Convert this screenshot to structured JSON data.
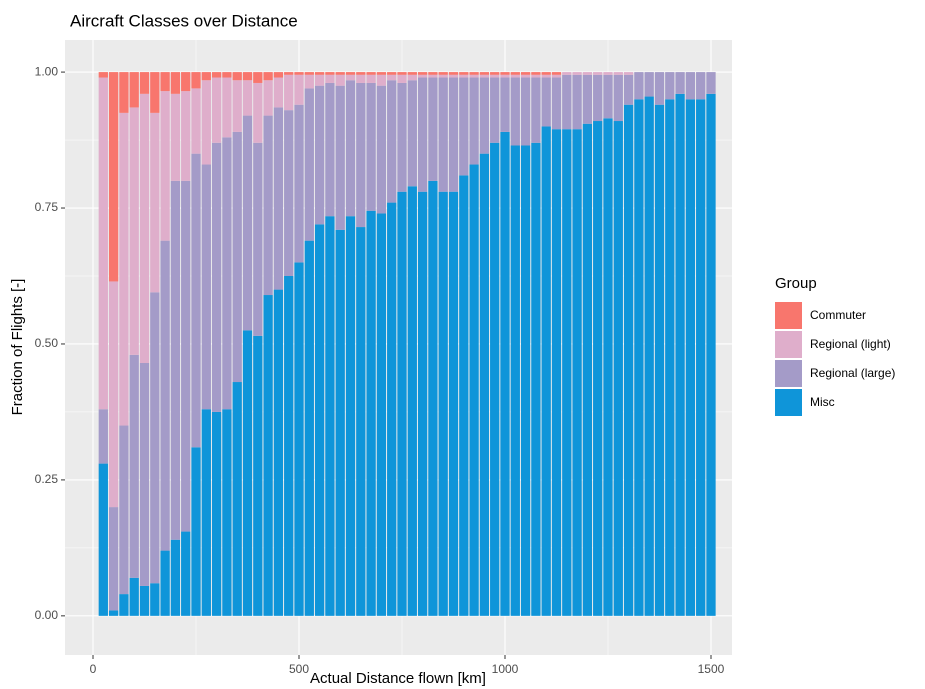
{
  "chart_data": {
    "type": "histogram",
    "title": "Aircraft Classes over Distance",
    "x_label": "Actual Distance flown [km]",
    "y_label": "Fraction of Flights [-]",
    "legend_title": "Group",
    "bins": [
      12.5,
      37.5,
      62.5,
      87.5,
      112.5,
      137.5,
      162.5,
      187.5,
      212.5,
      237.5,
      262.5,
      287.5,
      312.5,
      337.5,
      362.5,
      387.5,
      412.5,
      437.5,
      462.5,
      487.5,
      512.5,
      537.5,
      562.5,
      587.5,
      612.5,
      637.5,
      662.5,
      687.5,
      712.5,
      737.5,
      762.5,
      787.5,
      812.5,
      837.5,
      862.5,
      887.5,
      912.5,
      937.5,
      962.5,
      987.5,
      1012.5,
      1037.5,
      1062.5,
      1087.5,
      1112.5,
      1137.5,
      1162.5,
      1187.5,
      1212.5,
      1237.5,
      1262.5,
      1287.5,
      1312.5,
      1337.5,
      1362.5,
      1387.5,
      1412.5,
      1437.5,
      1462.5,
      1487.5,
      1512.5
    ],
    "series": [
      {
        "name": "Misc",
        "color": "#0f95d9",
        "values": [
          0.28,
          0.01,
          0.04,
          0.07,
          0.055,
          0.06,
          0.12,
          0.14,
          0.155,
          0.31,
          0.38,
          0.375,
          0.38,
          0.43,
          0.525,
          0.515,
          0.59,
          0.6,
          0.625,
          0.65,
          0.69,
          0.72,
          0.735,
          0.71,
          0.735,
          0.715,
          0.745,
          0.74,
          0.76,
          0.78,
          0.79,
          0.78,
          0.8,
          0.78,
          0.78,
          0.81,
          0.83,
          0.85,
          0.87,
          0.89,
          0.865,
          0.865,
          0.87,
          0.9,
          0.895,
          0.895,
          0.895,
          0.905,
          0.91,
          0.915,
          0.91,
          0.94,
          0.95,
          0.955,
          0.94,
          0.95,
          0.96,
          0.95,
          0.95,
          0.96
        ]
      },
      {
        "name": "Regional (large)",
        "color": "#a49bc8",
        "values": [
          0.1,
          0.19,
          0.31,
          0.41,
          0.41,
          0.535,
          0.57,
          0.66,
          0.645,
          0.54,
          0.45,
          0.495,
          0.5,
          0.46,
          0.395,
          0.355,
          0.33,
          0.335,
          0.305,
          0.29,
          0.28,
          0.255,
          0.245,
          0.265,
          0.25,
          0.265,
          0.235,
          0.235,
          0.225,
          0.2,
          0.195,
          0.21,
          0.19,
          0.21,
          0.21,
          0.18,
          0.16,
          0.14,
          0.12,
          0.1,
          0.125,
          0.125,
          0.12,
          0.09,
          0.095,
          0.1,
          0.1,
          0.09,
          0.085,
          0.08,
          0.085,
          0.055,
          0.05,
          0.045,
          0.06,
          0.05,
          0.04,
          0.05,
          0.05,
          0.04
        ]
      },
      {
        "name": "Regional (light)",
        "color": "#dfaecb",
        "values": [
          0.61,
          0.415,
          0.575,
          0.455,
          0.495,
          0.33,
          0.275,
          0.16,
          0.165,
          0.12,
          0.155,
          0.12,
          0.11,
          0.095,
          0.065,
          0.11,
          0.065,
          0.055,
          0.065,
          0.055,
          0.025,
          0.02,
          0.015,
          0.02,
          0.01,
          0.015,
          0.015,
          0.02,
          0.01,
          0.015,
          0.01,
          0.005,
          0.005,
          0.005,
          0.005,
          0.005,
          0.005,
          0.005,
          0.005,
          0.005,
          0.005,
          0.005,
          0.005,
          0.005,
          0.005,
          0.005,
          0.005,
          0.005,
          0.005,
          0.005,
          0.005,
          0.005,
          0,
          0,
          0,
          0,
          0,
          0,
          0,
          0
        ]
      },
      {
        "name": "Commuter",
        "color": "#f8766d",
        "values": [
          0.01,
          0.385,
          0.075,
          0.065,
          0.04,
          0.075,
          0.035,
          0.04,
          0.035,
          0.03,
          0.015,
          0.01,
          0.01,
          0.015,
          0.015,
          0.02,
          0.015,
          0.01,
          0.005,
          0.005,
          0.005,
          0.005,
          0.005,
          0.005,
          0.005,
          0.005,
          0.005,
          0.005,
          0.005,
          0.005,
          0.005,
          0.005,
          0.005,
          0.005,
          0.005,
          0.005,
          0.005,
          0.005,
          0.005,
          0.005,
          0.005,
          0.005,
          0.005,
          0.005,
          0.005,
          0,
          0,
          0,
          0,
          0,
          0,
          0,
          0,
          0,
          0,
          0,
          0,
          0,
          0,
          0
        ]
      }
    ],
    "legend_order": [
      "Commuter",
      "Regional (light)",
      "Regional (large)",
      "Misc"
    ],
    "xlim": [
      -68,
      1551
    ],
    "ylim": [
      -0.072,
      1.059
    ],
    "xticks": [
      0,
      500,
      1000,
      1500
    ],
    "yticks": [
      {
        "value": 0,
        "label": "0.00"
      },
      {
        "value": 0.25,
        "label": "0.25"
      },
      {
        "value": 0.5,
        "label": "0.50"
      },
      {
        "value": 0.75,
        "label": "0.75"
      },
      {
        "value": 1,
        "label": "1.00"
      }
    ],
    "grid": true,
    "legend_position": "right"
  }
}
